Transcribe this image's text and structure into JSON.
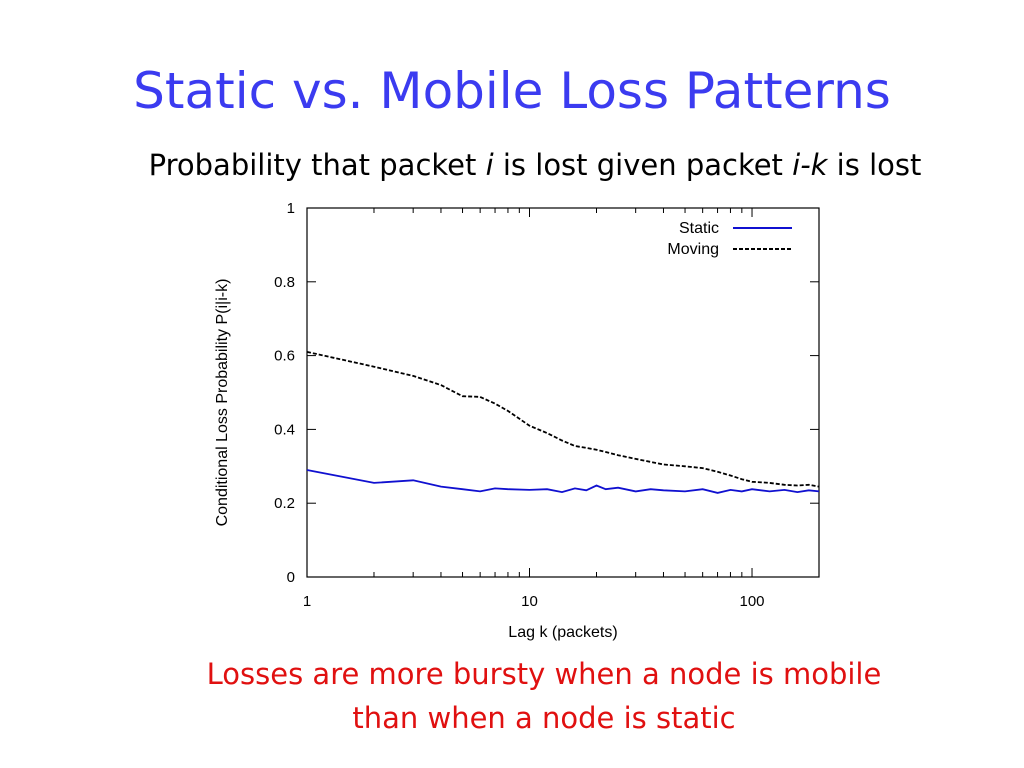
{
  "slide": {
    "title": "Static vs. Mobile Loss Patterns",
    "subtitle": {
      "part1": "Probability that packet ",
      "var_i": "i",
      "part2": " is lost given packet ",
      "var_ik": "i-k",
      "part3": " is lost"
    },
    "note_line1": "Losses are more bursty when a node is mobile",
    "note_line2": "than when a node is static"
  },
  "chart_data": {
    "type": "line",
    "xlabel": "Lag k (packets)",
    "ylabel": "Conditional Loss Probability P(i|i-k)",
    "xscale": "log",
    "xlim": [
      1,
      200
    ],
    "ylim": [
      0,
      1
    ],
    "xticks": [
      1,
      10,
      100
    ],
    "xtick_labels": [
      "1",
      "10",
      "100"
    ],
    "yticks": [
      0,
      0.2,
      0.4,
      0.6,
      0.8,
      1
    ],
    "ytick_labels": [
      "0",
      "0.2",
      "0.4",
      "0.6",
      "0.8",
      "1"
    ],
    "grid": false,
    "legend_position": "top-right",
    "series": [
      {
        "name": "Static",
        "color": "#1010d0",
        "style": "solid",
        "x": [
          1,
          2,
          3,
          4,
          5,
          6,
          7,
          8,
          10,
          12,
          14,
          16,
          18,
          20,
          22,
          25,
          30,
          35,
          40,
          50,
          60,
          70,
          80,
          90,
          100,
          120,
          140,
          160,
          180,
          200
        ],
        "y": [
          0.29,
          0.255,
          0.262,
          0.245,
          0.238,
          0.232,
          0.24,
          0.238,
          0.236,
          0.238,
          0.23,
          0.24,
          0.235,
          0.248,
          0.238,
          0.242,
          0.232,
          0.238,
          0.235,
          0.232,
          0.238,
          0.228,
          0.236,
          0.232,
          0.238,
          0.232,
          0.236,
          0.23,
          0.235,
          0.232
        ]
      },
      {
        "name": "Moving",
        "color": "#000000",
        "style": "dashed",
        "x": [
          1,
          2,
          3,
          4,
          5,
          6,
          7,
          8,
          10,
          12,
          14,
          16,
          18,
          20,
          25,
          30,
          35,
          40,
          50,
          60,
          70,
          80,
          90,
          100,
          120,
          140,
          160,
          180,
          200
        ],
        "y": [
          0.61,
          0.57,
          0.545,
          0.52,
          0.49,
          0.488,
          0.47,
          0.45,
          0.41,
          0.39,
          0.37,
          0.355,
          0.35,
          0.345,
          0.33,
          0.32,
          0.312,
          0.305,
          0.3,
          0.295,
          0.285,
          0.275,
          0.265,
          0.258,
          0.255,
          0.25,
          0.248,
          0.25,
          0.245
        ]
      }
    ]
  }
}
